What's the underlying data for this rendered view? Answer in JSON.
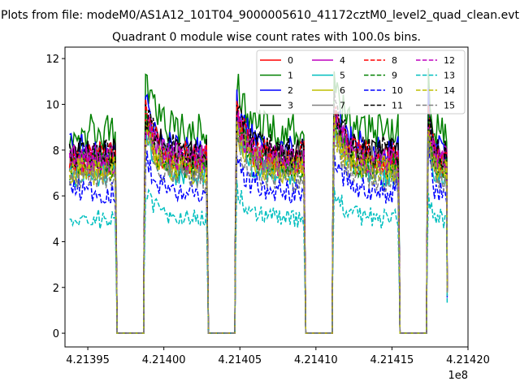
{
  "chart_data": {
    "type": "line",
    "suptitle": "Plots from file: modeM0/AS1A12_101T04_9000005610_41172cztM0_level2_quad_clean.evt",
    "title": "Quadrant 0 module wise count rates with 100.0s bins.",
    "xlabel": "",
    "ylabel": "",
    "x_offset_label": "1e8",
    "xlim": [
      4.213935,
      4.2142
    ],
    "ylim": [
      -0.6,
      12.5
    ],
    "x_ticks": [
      4.21395,
      4.214,
      4.21405,
      4.2141,
      4.21415,
      4.2142
    ],
    "x_tick_labels": [
      "4.21395",
      "4.21400",
      "4.21405",
      "4.21410",
      "4.21415",
      "4.21420"
    ],
    "y_ticks": [
      0,
      2,
      4,
      6,
      8,
      10,
      12
    ],
    "y_tick_labels": [
      "0",
      "2",
      "4",
      "6",
      "8",
      "10",
      "12"
    ],
    "grid": false,
    "legend_placement": "top-right",
    "legend_columns": 4,
    "segments": [
      [
        4.213938,
        4.213968
      ],
      [
        4.213988,
        4.214028
      ],
      [
        4.214048,
        4.214092
      ],
      [
        4.214112,
        4.214154
      ],
      [
        4.214174,
        4.214186
      ]
    ],
    "gap_x": [
      4.213969,
      4.213987,
      4.214029,
      4.214047,
      4.214093,
      4.214111,
      4.214155,
      4.214173
    ],
    "series": [
      {
        "name": "0",
        "color": "#ff0000",
        "dash": "solid",
        "level": 7.4
      },
      {
        "name": "1",
        "color": "#008000",
        "dash": "solid",
        "level": 8.8
      },
      {
        "name": "2",
        "color": "#0000ff",
        "dash": "solid",
        "level": 8.0
      },
      {
        "name": "3",
        "color": "#000000",
        "dash": "solid",
        "level": 7.8
      },
      {
        "name": "4",
        "color": "#bf00bf",
        "dash": "solid",
        "level": 7.6
      },
      {
        "name": "5",
        "color": "#00bfbf",
        "dash": "solid",
        "level": 7.0
      },
      {
        "name": "6",
        "color": "#bfbf00",
        "dash": "solid",
        "level": 7.2
      },
      {
        "name": "7",
        "color": "#808080",
        "dash": "solid",
        "level": 7.5
      },
      {
        "name": "8",
        "color": "#ff0000",
        "dash": "dashed",
        "level": 7.7
      },
      {
        "name": "9",
        "color": "#008000",
        "dash": "dashed",
        "level": 7.3
      },
      {
        "name": "10",
        "color": "#0000ff",
        "dash": "dashed",
        "level": 6.2
      },
      {
        "name": "11",
        "color": "#000000",
        "dash": "dashed",
        "level": 7.9
      },
      {
        "name": "12",
        "color": "#bf00bf",
        "dash": "dashed",
        "level": 7.5
      },
      {
        "name": "13",
        "color": "#00bfbf",
        "dash": "dashed",
        "level": 5.0
      },
      {
        "name": "14",
        "color": "#bfbf00",
        "dash": "dashed",
        "level": 7.1
      },
      {
        "name": "15",
        "color": "#808080",
        "dash": "dashed",
        "level": 6.8
      }
    ]
  }
}
